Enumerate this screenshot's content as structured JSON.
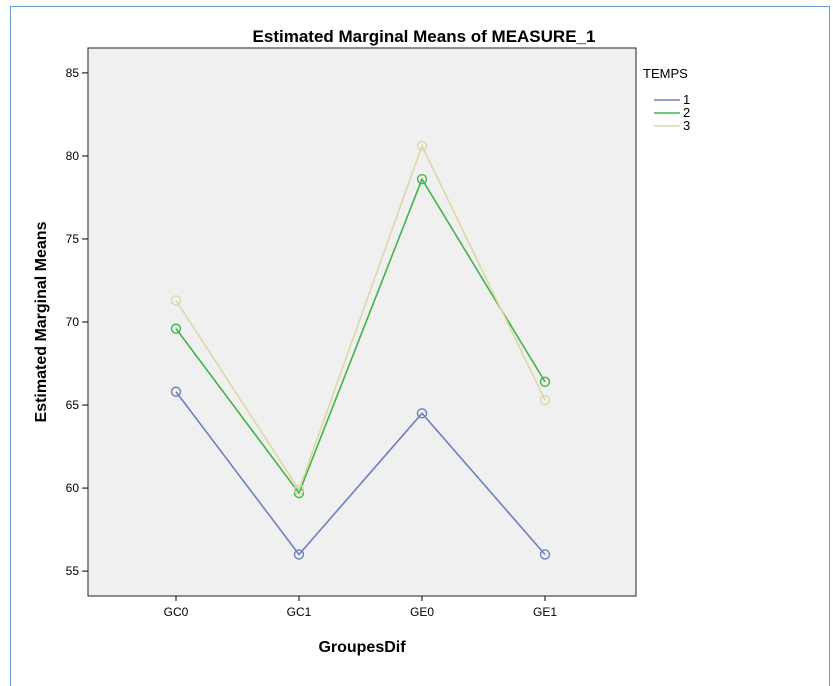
{
  "chart_data": {
    "type": "line",
    "title": "Estimated Marginal Means of MEASURE_1",
    "xlabel": "GroupesDif",
    "ylabel": "Estimated Marginal Means",
    "categories": [
      "GC0",
      "GC1",
      "GE0",
      "GE1"
    ],
    "ylim": [
      53.5,
      86.5
    ],
    "yticks": [
      55,
      60,
      65,
      70,
      75,
      80,
      85
    ],
    "legend_title": "TEMPS",
    "legend_position": "right",
    "series": [
      {
        "name": "1",
        "color": "#6f80c0",
        "values": [
          65.8,
          56.0,
          64.5,
          56.0
        ]
      },
      {
        "name": "2",
        "color": "#3fb64a",
        "values": [
          69.6,
          59.7,
          78.6,
          66.4
        ]
      },
      {
        "name": "3",
        "color": "#dcd8a8",
        "values": [
          71.3,
          59.9,
          80.6,
          65.3
        ]
      }
    ],
    "grid": false,
    "plot_background": "#f0f0f0"
  }
}
